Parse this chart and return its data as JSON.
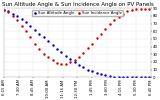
{
  "title": "Sun Altitude Angle & Sun Incidence Angle on PV Panels",
  "bg_color": "#ffffff",
  "plot_bg_color": "#ffffff",
  "grid_color": "#aaaaaa",
  "text_color": "#000000",
  "blue_color": "#0000cc",
  "red_color": "#cc0000",
  "blue_label": "Sun Altitude Angle",
  "red_label": "Sun Incidence Angle",
  "ylim": [
    0,
    90
  ],
  "xlim": [
    0,
    100
  ],
  "blue_x": [
    0,
    3,
    6,
    9,
    12,
    15,
    18,
    21,
    24,
    27,
    30,
    33,
    36,
    39,
    42,
    45,
    48,
    51,
    54,
    57,
    60,
    63,
    66,
    69,
    72,
    75,
    78,
    81,
    84,
    87,
    90,
    93,
    96,
    99
  ],
  "blue_y": [
    88,
    86,
    83,
    80,
    76,
    72,
    67,
    62,
    57,
    52,
    47,
    42,
    37,
    33,
    28,
    24,
    20,
    16,
    13,
    10,
    8,
    6,
    4,
    3,
    2,
    1,
    1,
    0,
    0,
    0,
    0,
    0,
    0,
    0
  ],
  "red_x": [
    0,
    3,
    6,
    9,
    12,
    15,
    18,
    21,
    24,
    27,
    30,
    33,
    36,
    39,
    42,
    45,
    48,
    51,
    54,
    57,
    60,
    63,
    66,
    69,
    72,
    75,
    78,
    81,
    84,
    87,
    90,
    93,
    96,
    99
  ],
  "red_y": [
    88,
    85,
    80,
    74,
    67,
    60,
    52,
    44,
    37,
    31,
    26,
    22,
    19,
    18,
    18,
    20,
    23,
    27,
    32,
    38,
    44,
    51,
    57,
    63,
    69,
    74,
    79,
    83,
    86,
    88,
    89,
    89,
    89,
    89
  ],
  "xtick_labels": [
    "6:15 AM",
    "7:30 AM",
    "8:45 AM",
    "10:00 AM",
    "11:15 AM",
    "12:30 PM",
    "1:45 PM",
    "3:00 PM",
    "4:15 PM",
    "5:30 PM",
    "6:45 PM"
  ],
  "ytick_vals": [
    0,
    10,
    20,
    30,
    40,
    50,
    60,
    70,
    80,
    90
  ],
  "title_fontsize": 4.0,
  "tick_fontsize": 2.8,
  "legend_fontsize": 2.8,
  "marker_size": 1.5
}
